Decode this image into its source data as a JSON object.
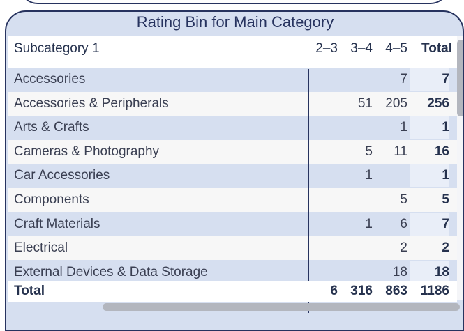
{
  "table": {
    "title": "Rating Bin for Main Category",
    "row_header": "Subcategory 1",
    "columns": [
      "2–3",
      "3–4",
      "4–5"
    ],
    "total_label": "Total",
    "rows": [
      {
        "label": "Accessories",
        "values": [
          "",
          "",
          "7"
        ],
        "total": "7"
      },
      {
        "label": "Accessories & Peripherals",
        "values": [
          "",
          "51",
          "205"
        ],
        "total": "256"
      },
      {
        "label": "Arts & Crafts",
        "values": [
          "",
          "",
          "1"
        ],
        "total": "1"
      },
      {
        "label": "Cameras & Photography",
        "values": [
          "",
          "5",
          "11"
        ],
        "total": "16"
      },
      {
        "label": "Car Accessories",
        "values": [
          "",
          "1",
          ""
        ],
        "total": "1"
      },
      {
        "label": "Components",
        "values": [
          "",
          "",
          "5"
        ],
        "total": "5"
      },
      {
        "label": "Craft Materials",
        "values": [
          "",
          "1",
          "6"
        ],
        "total": "7"
      },
      {
        "label": "Electrical",
        "values": [
          "",
          "",
          "2"
        ],
        "total": "2"
      },
      {
        "label": "External Devices & Data Storage",
        "values": [
          "",
          "",
          "18"
        ],
        "total": "18"
      }
    ],
    "totals_row": {
      "label": "Total",
      "values": [
        "6",
        "316",
        "863"
      ],
      "total": "1186"
    }
  },
  "colors": {
    "accent": "#27335f",
    "band": "#d6dff0",
    "row_alt": "#f7f7f7",
    "scrollbar": "#b3b6be"
  }
}
